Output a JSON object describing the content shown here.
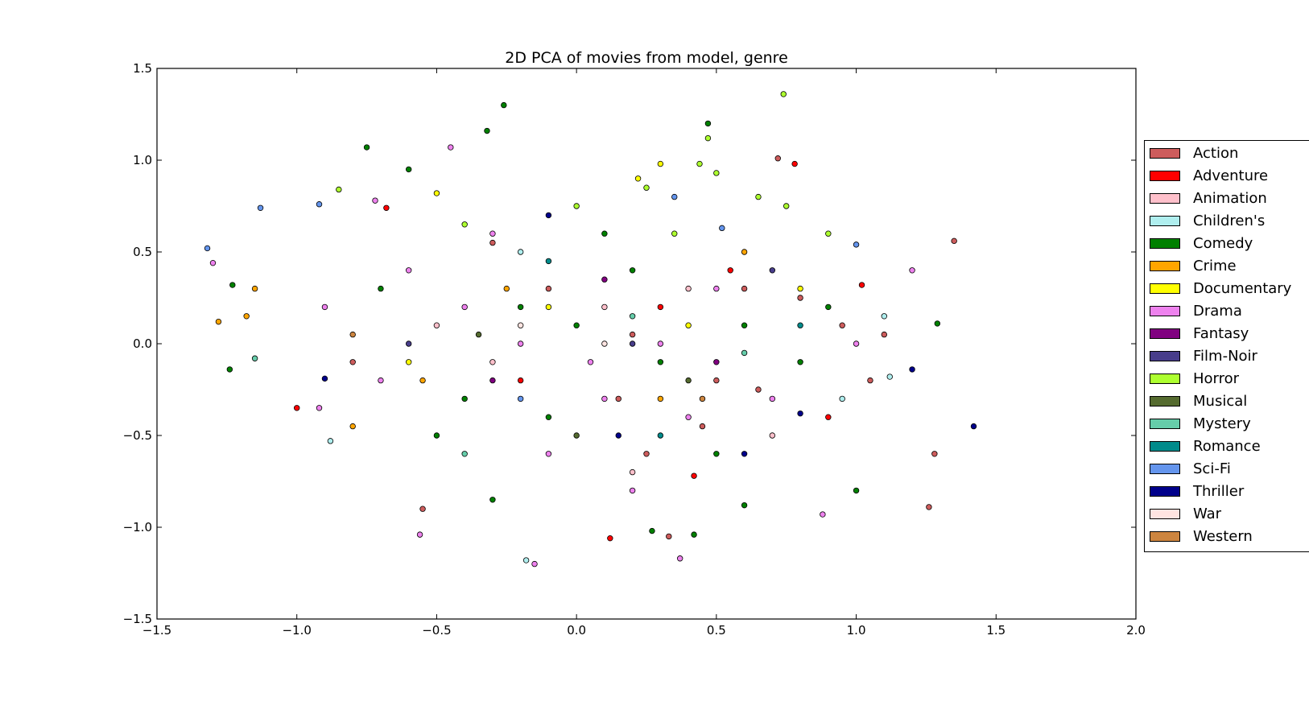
{
  "chart_data": {
    "type": "scatter",
    "title": "2D PCA of movies from model, genre",
    "xlim": [
      -1.5,
      2.0
    ],
    "ylim": [
      -1.5,
      1.5
    ],
    "x_ticks": [
      -1.5,
      -1.0,
      -0.5,
      0.0,
      0.5,
      1.0,
      1.5,
      2.0
    ],
    "y_ticks": [
      -1.5,
      -1.0,
      -0.5,
      0.0,
      0.5,
      1.0,
      1.5
    ],
    "x_tick_labels": [
      "−1.5",
      "−1.0",
      "−0.5",
      "0.0",
      "0.5",
      "1.0",
      "1.5",
      "2.0"
    ],
    "y_tick_labels": [
      "−1.5",
      "−1.0",
      "−0.5",
      "0.0",
      "0.5",
      "1.0",
      "1.5"
    ],
    "grid": false,
    "legend_position": "right, outside plot",
    "series": [
      {
        "name": "Action",
        "color": "#cd5c5c",
        "points": [
          [
            -0.3,
            0.55
          ],
          [
            0.15,
            -0.3
          ],
          [
            0.6,
            0.3
          ],
          [
            0.95,
            0.1
          ],
          [
            1.05,
            -0.2
          ],
          [
            0.45,
            -0.45
          ],
          [
            0.2,
            0.05
          ],
          [
            -0.55,
            -0.9
          ],
          [
            1.35,
            0.56
          ],
          [
            1.28,
            -0.6
          ],
          [
            1.26,
            -0.89
          ],
          [
            0.72,
            1.01
          ],
          [
            0.33,
            -1.05
          ],
          [
            0.5,
            -0.2
          ],
          [
            0.8,
            0.25
          ],
          [
            -0.8,
            -0.1
          ],
          [
            1.1,
            0.05
          ],
          [
            0.25,
            -0.6
          ],
          [
            0.65,
            -0.25
          ],
          [
            -0.1,
            0.3
          ]
        ]
      },
      {
        "name": "Adventure",
        "color": "#ff0000",
        "points": [
          [
            0.78,
            0.98
          ],
          [
            -0.68,
            0.74
          ],
          [
            0.12,
            -1.06
          ],
          [
            1.02,
            0.32
          ],
          [
            -1.0,
            -0.35
          ],
          [
            0.42,
            -0.72
          ],
          [
            0.55,
            0.4
          ],
          [
            -0.2,
            -0.2
          ],
          [
            0.9,
            -0.4
          ],
          [
            0.3,
            0.2
          ]
        ]
      },
      {
        "name": "Animation",
        "color": "#ffc0cb",
        "points": [
          [
            0.4,
            0.3
          ],
          [
            -0.3,
            -0.1
          ],
          [
            0.1,
            0.2
          ],
          [
            0.7,
            -0.5
          ],
          [
            -0.5,
            0.1
          ],
          [
            0.2,
            -0.7
          ]
        ]
      },
      {
        "name": "Children's",
        "color": "#afeeee",
        "points": [
          [
            -0.18,
            -1.18
          ],
          [
            1.12,
            -0.18
          ],
          [
            -0.88,
            -0.53
          ],
          [
            1.1,
            0.15
          ],
          [
            0.95,
            -0.3
          ],
          [
            -0.2,
            0.5
          ]
        ]
      },
      {
        "name": "Comedy",
        "color": "#008000",
        "points": [
          [
            -0.26,
            1.3
          ],
          [
            0.47,
            1.2
          ],
          [
            -0.32,
            1.16
          ],
          [
            -0.75,
            1.07
          ],
          [
            -1.23,
            0.32
          ],
          [
            -1.24,
            -0.14
          ],
          [
            1.29,
            0.11
          ],
          [
            0.27,
            -1.02
          ],
          [
            0.42,
            -1.04
          ],
          [
            -0.6,
            0.95
          ],
          [
            0.0,
            0.1
          ],
          [
            0.3,
            -0.1
          ],
          [
            -0.4,
            -0.3
          ],
          [
            0.6,
            0.1
          ],
          [
            -0.1,
            -0.4
          ],
          [
            0.8,
            -0.1
          ],
          [
            -0.7,
            0.3
          ],
          [
            0.1,
            0.6
          ],
          [
            0.5,
            -0.6
          ],
          [
            -0.2,
            0.2
          ],
          [
            0.9,
            0.2
          ],
          [
            0.2,
            0.4
          ],
          [
            -0.5,
            -0.5
          ],
          [
            1.0,
            -0.8
          ],
          [
            0.6,
            -0.88
          ],
          [
            -0.3,
            -0.85
          ]
        ]
      },
      {
        "name": "Crime",
        "color": "#ffa500",
        "points": [
          [
            -1.28,
            0.12
          ],
          [
            -1.18,
            0.15
          ],
          [
            -1.15,
            0.3
          ],
          [
            -0.25,
            0.3
          ],
          [
            0.3,
            -0.3
          ],
          [
            -0.8,
            -0.45
          ],
          [
            0.6,
            0.5
          ],
          [
            -0.55,
            -0.2
          ]
        ]
      },
      {
        "name": "Documentary",
        "color": "#ffff00",
        "points": [
          [
            -0.5,
            0.82
          ],
          [
            0.22,
            0.9
          ],
          [
            0.3,
            0.98
          ],
          [
            -0.1,
            0.2
          ],
          [
            0.4,
            0.1
          ],
          [
            -0.6,
            -0.1
          ],
          [
            0.8,
            0.3
          ]
        ]
      },
      {
        "name": "Drama",
        "color": "#ee82ee",
        "points": [
          [
            -1.3,
            0.44
          ],
          [
            -0.56,
            -1.04
          ],
          [
            -0.15,
            -1.2
          ],
          [
            0.37,
            -1.17
          ],
          [
            0.88,
            -0.93
          ],
          [
            -0.2,
            0.0
          ],
          [
            0.05,
            -0.1
          ],
          [
            -0.4,
            0.2
          ],
          [
            0.3,
            0.0
          ],
          [
            -0.7,
            -0.2
          ],
          [
            0.5,
            0.3
          ],
          [
            -0.1,
            -0.6
          ],
          [
            0.2,
            -0.8
          ],
          [
            -0.9,
            0.2
          ],
          [
            0.7,
            -0.3
          ],
          [
            1.0,
            0.0
          ],
          [
            -0.3,
            0.6
          ],
          [
            0.1,
            -0.3
          ],
          [
            -0.6,
            0.4
          ],
          [
            0.4,
            -0.4
          ],
          [
            -0.45,
            1.07
          ],
          [
            -0.72,
            0.78
          ],
          [
            -0.92,
            -0.35
          ],
          [
            1.2,
            0.4
          ]
        ]
      },
      {
        "name": "Fantasy",
        "color": "#800080",
        "points": [
          [
            -0.3,
            -0.2
          ],
          [
            0.5,
            -0.1
          ],
          [
            0.1,
            0.35
          ]
        ]
      },
      {
        "name": "Film-Noir",
        "color": "#483d8b",
        "points": [
          [
            0.2,
            0.0
          ],
          [
            -0.6,
            0.0
          ],
          [
            0.7,
            0.4
          ]
        ]
      },
      {
        "name": "Horror",
        "color": "#adff2f",
        "points": [
          [
            0.74,
            1.36
          ],
          [
            0.47,
            1.12
          ],
          [
            0.44,
            0.98
          ],
          [
            0.5,
            0.93
          ],
          [
            0.25,
            0.85
          ],
          [
            0.65,
            0.8
          ],
          [
            0.75,
            0.75
          ],
          [
            0.9,
            0.6
          ],
          [
            -0.85,
            0.84
          ],
          [
            0.0,
            0.75
          ],
          [
            0.35,
            0.6
          ],
          [
            -0.4,
            0.65
          ]
        ]
      },
      {
        "name": "Musical",
        "color": "#556b2f",
        "points": [
          [
            -0.35,
            0.05
          ],
          [
            0.4,
            -0.2
          ],
          [
            0.0,
            -0.5
          ]
        ]
      },
      {
        "name": "Mystery",
        "color": "#66cdaa",
        "points": [
          [
            -1.15,
            -0.08
          ],
          [
            0.2,
            0.15
          ],
          [
            -0.4,
            -0.6
          ],
          [
            0.6,
            -0.05
          ]
        ]
      },
      {
        "name": "Romance",
        "color": "#008b8b",
        "points": [
          [
            -0.1,
            0.45
          ],
          [
            0.3,
            -0.5
          ],
          [
            0.8,
            0.1
          ]
        ]
      },
      {
        "name": "Sci-Fi",
        "color": "#6495ed",
        "points": [
          [
            -1.32,
            0.52
          ],
          [
            -1.13,
            0.74
          ],
          [
            0.52,
            0.63
          ],
          [
            1.0,
            0.54
          ],
          [
            -0.2,
            -0.3
          ],
          [
            0.35,
            0.8
          ],
          [
            -0.92,
            0.76
          ]
        ]
      },
      {
        "name": "Thriller",
        "color": "#00008b",
        "points": [
          [
            1.42,
            -0.45
          ],
          [
            1.2,
            -0.14
          ],
          [
            0.8,
            -0.38
          ],
          [
            -0.1,
            0.7
          ],
          [
            0.15,
            -0.5
          ],
          [
            -0.9,
            -0.19
          ],
          [
            0.6,
            -0.6
          ]
        ]
      },
      {
        "name": "War",
        "color": "#ffe4e1",
        "points": [
          [
            0.1,
            0.0
          ],
          [
            -0.2,
            0.1
          ]
        ]
      },
      {
        "name": "Western",
        "color": "#cd853f",
        "points": [
          [
            -0.8,
            0.05
          ],
          [
            0.45,
            -0.3
          ]
        ]
      }
    ]
  }
}
